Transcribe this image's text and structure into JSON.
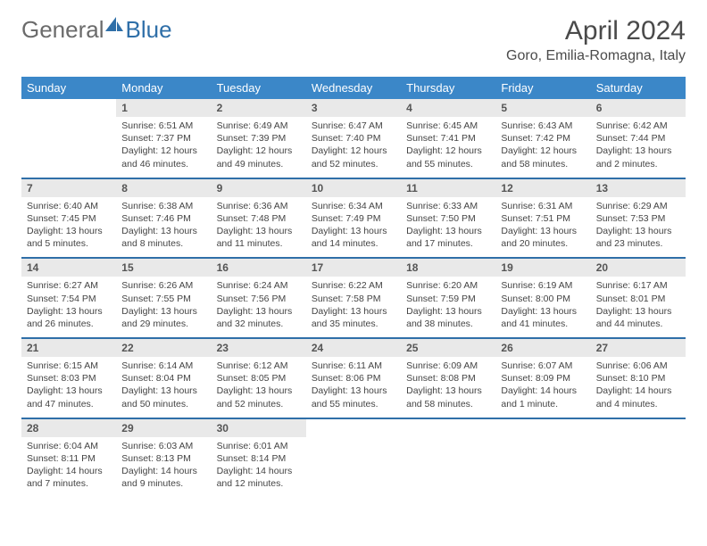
{
  "brand": {
    "part1": "General",
    "part2": "Blue"
  },
  "title": "April 2024",
  "location": "Goro, Emilia-Romagna, Italy",
  "colors": {
    "header_bg": "#3b87c8",
    "header_text": "#ffffff",
    "row_divider": "#2f6fa8",
    "daynum_bg": "#e9e9e9",
    "daynum_text": "#555555",
    "body_text": "#444444",
    "brand_grey": "#6b6b6b",
    "brand_blue": "#2f6fa8"
  },
  "weekdays": [
    "Sunday",
    "Monday",
    "Tuesday",
    "Wednesday",
    "Thursday",
    "Friday",
    "Saturday"
  ],
  "weeks": [
    [
      null,
      {
        "n": "1",
        "sr": "6:51 AM",
        "ss": "7:37 PM",
        "dl": "12 hours and 46 minutes."
      },
      {
        "n": "2",
        "sr": "6:49 AM",
        "ss": "7:39 PM",
        "dl": "12 hours and 49 minutes."
      },
      {
        "n": "3",
        "sr": "6:47 AM",
        "ss": "7:40 PM",
        "dl": "12 hours and 52 minutes."
      },
      {
        "n": "4",
        "sr": "6:45 AM",
        "ss": "7:41 PM",
        "dl": "12 hours and 55 minutes."
      },
      {
        "n": "5",
        "sr": "6:43 AM",
        "ss": "7:42 PM",
        "dl": "12 hours and 58 minutes."
      },
      {
        "n": "6",
        "sr": "6:42 AM",
        "ss": "7:44 PM",
        "dl": "13 hours and 2 minutes."
      }
    ],
    [
      {
        "n": "7",
        "sr": "6:40 AM",
        "ss": "7:45 PM",
        "dl": "13 hours and 5 minutes."
      },
      {
        "n": "8",
        "sr": "6:38 AM",
        "ss": "7:46 PM",
        "dl": "13 hours and 8 minutes."
      },
      {
        "n": "9",
        "sr": "6:36 AM",
        "ss": "7:48 PM",
        "dl": "13 hours and 11 minutes."
      },
      {
        "n": "10",
        "sr": "6:34 AM",
        "ss": "7:49 PM",
        "dl": "13 hours and 14 minutes."
      },
      {
        "n": "11",
        "sr": "6:33 AM",
        "ss": "7:50 PM",
        "dl": "13 hours and 17 minutes."
      },
      {
        "n": "12",
        "sr": "6:31 AM",
        "ss": "7:51 PM",
        "dl": "13 hours and 20 minutes."
      },
      {
        "n": "13",
        "sr": "6:29 AM",
        "ss": "7:53 PM",
        "dl": "13 hours and 23 minutes."
      }
    ],
    [
      {
        "n": "14",
        "sr": "6:27 AM",
        "ss": "7:54 PM",
        "dl": "13 hours and 26 minutes."
      },
      {
        "n": "15",
        "sr": "6:26 AM",
        "ss": "7:55 PM",
        "dl": "13 hours and 29 minutes."
      },
      {
        "n": "16",
        "sr": "6:24 AM",
        "ss": "7:56 PM",
        "dl": "13 hours and 32 minutes."
      },
      {
        "n": "17",
        "sr": "6:22 AM",
        "ss": "7:58 PM",
        "dl": "13 hours and 35 minutes."
      },
      {
        "n": "18",
        "sr": "6:20 AM",
        "ss": "7:59 PM",
        "dl": "13 hours and 38 minutes."
      },
      {
        "n": "19",
        "sr": "6:19 AM",
        "ss": "8:00 PM",
        "dl": "13 hours and 41 minutes."
      },
      {
        "n": "20",
        "sr": "6:17 AM",
        "ss": "8:01 PM",
        "dl": "13 hours and 44 minutes."
      }
    ],
    [
      {
        "n": "21",
        "sr": "6:15 AM",
        "ss": "8:03 PM",
        "dl": "13 hours and 47 minutes."
      },
      {
        "n": "22",
        "sr": "6:14 AM",
        "ss": "8:04 PM",
        "dl": "13 hours and 50 minutes."
      },
      {
        "n": "23",
        "sr": "6:12 AM",
        "ss": "8:05 PM",
        "dl": "13 hours and 52 minutes."
      },
      {
        "n": "24",
        "sr": "6:11 AM",
        "ss": "8:06 PM",
        "dl": "13 hours and 55 minutes."
      },
      {
        "n": "25",
        "sr": "6:09 AM",
        "ss": "8:08 PM",
        "dl": "13 hours and 58 minutes."
      },
      {
        "n": "26",
        "sr": "6:07 AM",
        "ss": "8:09 PM",
        "dl": "14 hours and 1 minute."
      },
      {
        "n": "27",
        "sr": "6:06 AM",
        "ss": "8:10 PM",
        "dl": "14 hours and 4 minutes."
      }
    ],
    [
      {
        "n": "28",
        "sr": "6:04 AM",
        "ss": "8:11 PM",
        "dl": "14 hours and 7 minutes."
      },
      {
        "n": "29",
        "sr": "6:03 AM",
        "ss": "8:13 PM",
        "dl": "14 hours and 9 minutes."
      },
      {
        "n": "30",
        "sr": "6:01 AM",
        "ss": "8:14 PM",
        "dl": "14 hours and 12 minutes."
      },
      null,
      null,
      null,
      null
    ]
  ],
  "labels": {
    "sunrise": "Sunrise:",
    "sunset": "Sunset:",
    "daylight": "Daylight:"
  }
}
